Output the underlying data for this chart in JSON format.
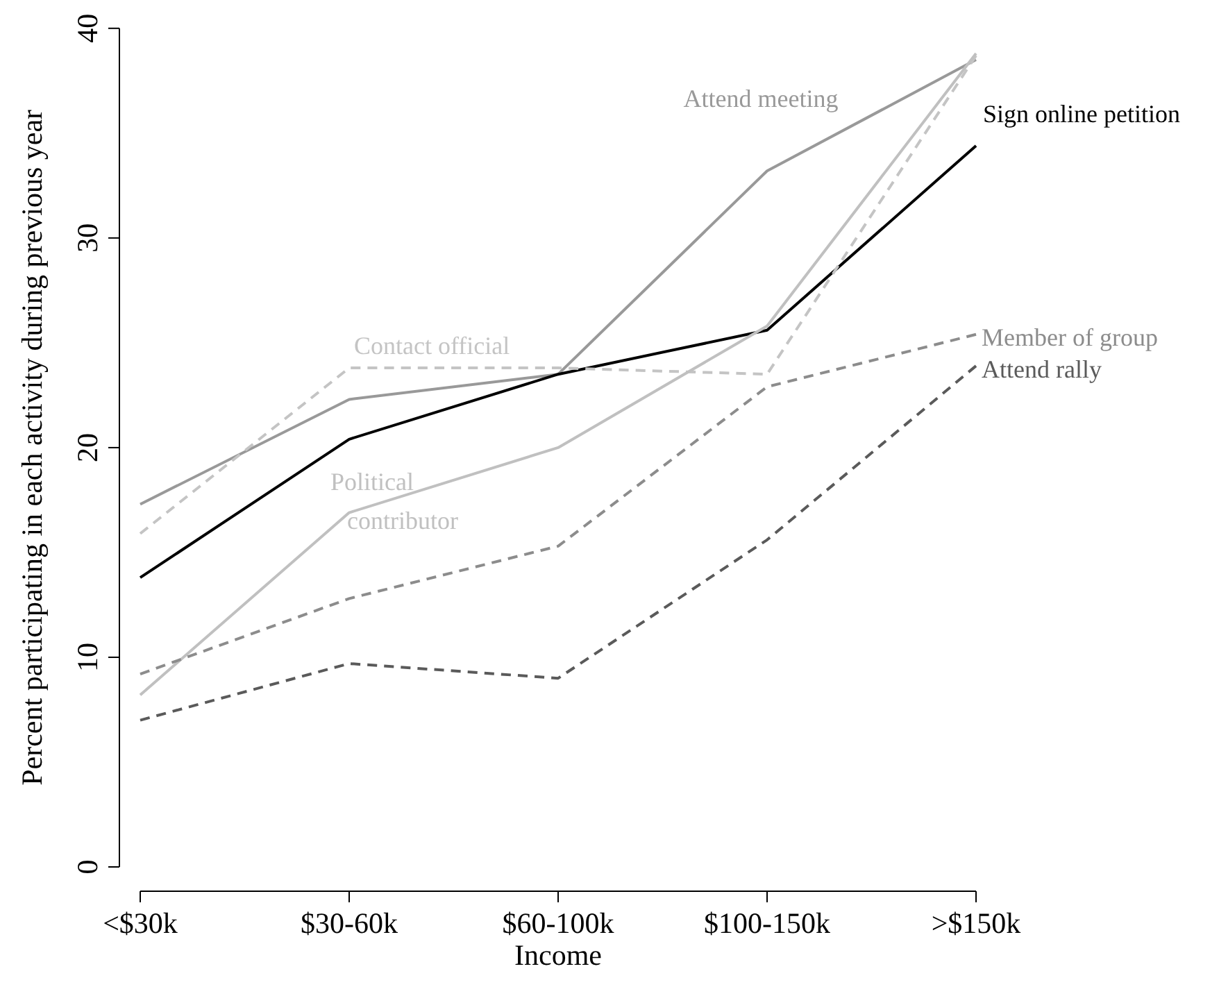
{
  "chart_data": {
    "type": "line",
    "xlabel": "Income",
    "ylabel": "Percent participating in each activity during previous year",
    "categories": [
      "<$30k",
      "$30-60k",
      "$60-100k",
      "$100-150k",
      ">$150k"
    ],
    "ylim": [
      0,
      40
    ],
    "yticks": [
      0,
      10,
      20,
      30,
      40
    ],
    "series": [
      {
        "name": "Attend meeting",
        "color": "#999999",
        "line_style": "solid",
        "values": [
          17.3,
          22.3,
          23.5,
          33.2,
          38.5
        ]
      },
      {
        "name": "Sign online petition",
        "color": "#000000",
        "line_style": "solid",
        "values": [
          13.8,
          20.4,
          23.5,
          25.6,
          34.4
        ]
      },
      {
        "name": "Contact official",
        "color": "#c4c4c4",
        "line_style": "dashed",
        "values": [
          15.9,
          23.8,
          23.8,
          23.5,
          38.7
        ]
      },
      {
        "name": "Political contributor",
        "color": "#c0c0c0",
        "line_style": "solid",
        "values": [
          8.2,
          16.9,
          20.0,
          25.8,
          38.8
        ]
      },
      {
        "name": "Member of group",
        "color": "#8c8c8c",
        "line_style": "dashed",
        "values": [
          9.2,
          12.8,
          15.3,
          22.9,
          25.4
        ]
      },
      {
        "name": "Attend rally",
        "color": "#5a5a5a",
        "line_style": "dashed",
        "values": [
          7.0,
          9.7,
          9.0,
          15.6,
          23.9
        ]
      }
    ]
  }
}
